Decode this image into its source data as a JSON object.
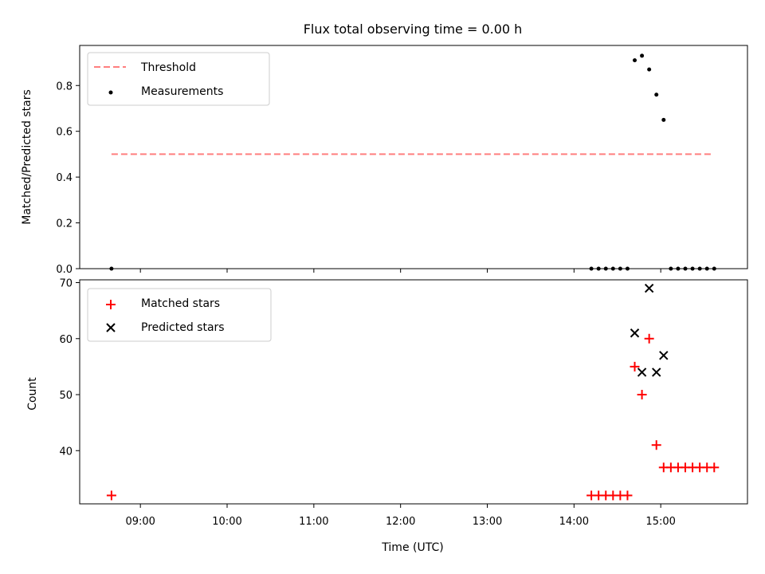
{
  "chart_data": [
    {
      "type": "scatter",
      "title": "Flux total observing time = 0.00 h",
      "ylabel": "Matched/Predicted stars",
      "xlabel": "",
      "xlim": [
        "08:18",
        "16:00"
      ],
      "ylim": [
        0,
        0.975
      ],
      "yticks": [
        0,
        0.2,
        0.4,
        0.6,
        0.8
      ],
      "ytick_labels": [
        "0.0",
        "0.2",
        "0.4",
        "0.6",
        "0.8"
      ],
      "grid": false,
      "legend": {
        "position": "upper-left",
        "entries": [
          {
            "label": "Threshold",
            "style": "dashed-line",
            "color": "#ff7f7f"
          },
          {
            "label": "Measurements",
            "style": "dot",
            "color": "#000000"
          }
        ]
      },
      "series": [
        {
          "name": "Threshold",
          "kind": "line",
          "color": "#ff7f7f",
          "x": [
            "08:40",
            "15:35"
          ],
          "y": [
            0.5,
            0.5
          ]
        },
        {
          "name": "Measurements",
          "kind": "scatter",
          "color": "#000000",
          "x": [
            "08:40",
            "14:12",
            "14:17",
            "14:22",
            "14:27",
            "14:32",
            "14:37",
            "14:42",
            "14:47",
            "14:52",
            "14:57",
            "15:02",
            "15:07",
            "15:12",
            "15:17",
            "15:22",
            "15:27",
            "15:32",
            "15:37"
          ],
          "y": [
            0,
            0,
            0,
            0,
            0,
            0,
            0,
            0.91,
            0.93,
            0.87,
            0.76,
            0.65,
            0,
            0,
            0,
            0,
            0,
            0,
            0
          ]
        }
      ]
    },
    {
      "type": "scatter",
      "title": "",
      "ylabel": "Count",
      "xlabel": "Time (UTC)",
      "xlim": [
        "08:18",
        "16:00"
      ],
      "ylim": [
        30.5,
        70.5
      ],
      "yticks": [
        40,
        50,
        60,
        70
      ],
      "ytick_labels": [
        "40",
        "50",
        "60",
        "70"
      ],
      "xticks": [
        "09:00",
        "10:00",
        "11:00",
        "12:00",
        "13:00",
        "14:00",
        "15:00"
      ],
      "grid": false,
      "legend": {
        "position": "upper-left",
        "entries": [
          {
            "label": "Matched stars",
            "style": "plus",
            "color": "#ff0000"
          },
          {
            "label": "Predicted stars",
            "style": "x",
            "color": "#000000"
          }
        ]
      },
      "series": [
        {
          "name": "Matched stars",
          "kind": "scatter",
          "marker": "plus",
          "color": "#ff0000",
          "x": [
            "08:40",
            "14:12",
            "14:17",
            "14:22",
            "14:27",
            "14:32",
            "14:37",
            "14:42",
            "14:47",
            "14:52",
            "14:57",
            "15:02",
            "15:07",
            "15:12",
            "15:17",
            "15:22",
            "15:27",
            "15:32",
            "15:37"
          ],
          "y": [
            32,
            32,
            32,
            32,
            32,
            32,
            32,
            55,
            50,
            60,
            41,
            37,
            37,
            37,
            37,
            37,
            37,
            37,
            37
          ]
        },
        {
          "name": "Predicted stars",
          "kind": "scatter",
          "marker": "x",
          "color": "#000000",
          "x": [
            "14:42",
            "14:47",
            "14:52",
            "14:57",
            "15:02"
          ],
          "y": [
            61,
            54,
            69,
            54,
            57
          ]
        }
      ]
    }
  ]
}
